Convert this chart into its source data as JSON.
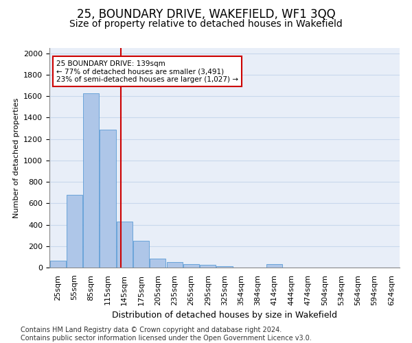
{
  "title": "25, BOUNDARY DRIVE, WAKEFIELD, WF1 3QQ",
  "subtitle": "Size of property relative to detached houses in Wakefield",
  "xlabel": "Distribution of detached houses by size in Wakefield",
  "ylabel": "Number of detached properties",
  "footer_line1": "Contains HM Land Registry data © Crown copyright and database right 2024.",
  "footer_line2": "Contains public sector information licensed under the Open Government Licence v3.0.",
  "categories": [
    "25sqm",
    "55sqm",
    "85sqm",
    "115sqm",
    "145sqm",
    "175sqm",
    "205sqm",
    "235sqm",
    "265sqm",
    "295sqm",
    "325sqm",
    "354sqm",
    "384sqm",
    "414sqm",
    "444sqm",
    "474sqm",
    "504sqm",
    "534sqm",
    "564sqm",
    "594sqm",
    "624sqm"
  ],
  "values": [
    65,
    680,
    1630,
    1290,
    430,
    250,
    85,
    50,
    30,
    25,
    10,
    0,
    0,
    30,
    0,
    0,
    0,
    0,
    0,
    0,
    0
  ],
  "bar_color": "#aec6e8",
  "bar_edge_color": "#5b9bd5",
  "annotation_text_line1": "25 BOUNDARY DRIVE: 139sqm",
  "annotation_text_line2": "← 77% of detached houses are smaller (3,491)",
  "annotation_text_line3": "23% of semi-detached houses are larger (1,027) →",
  "annotation_box_color": "#ffffff",
  "annotation_box_edge_color": "#cc0000",
  "annotation_text_color": "#000000",
  "property_line_color": "#cc0000",
  "ylim": [
    0,
    2050
  ],
  "yticks": [
    0,
    200,
    400,
    600,
    800,
    1000,
    1200,
    1400,
    1600,
    1800,
    2000
  ],
  "grid_color": "#c8d8ec",
  "background_color": "#e8eef8",
  "title_fontsize": 12,
  "subtitle_fontsize": 10,
  "axis_label_fontsize": 9,
  "tick_fontsize": 8,
  "footer_fontsize": 7,
  "ylabel_fontsize": 8
}
